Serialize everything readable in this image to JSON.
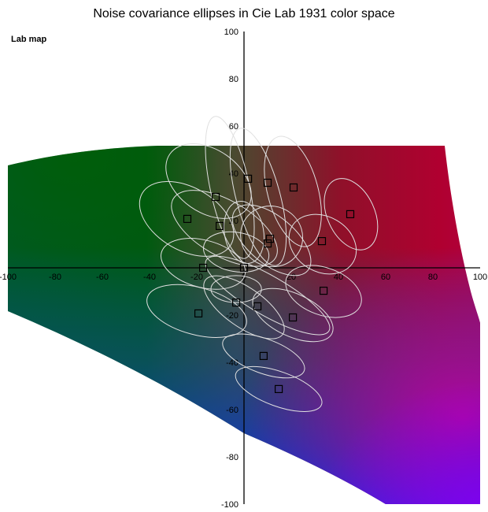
{
  "chart_data": {
    "type": "scatter",
    "title": "Noise covariance ellipses in Cie Lab 1931 color space",
    "subtitle": "Lab map",
    "xlabel": "",
    "ylabel": "",
    "xlim": [
      -100,
      100
    ],
    "ylim": [
      -100,
      100
    ],
    "xticks": [
      -100,
      -80,
      -60,
      -40,
      -20,
      0,
      20,
      40,
      60,
      80,
      100
    ],
    "yticks": [
      100,
      80,
      60,
      40,
      20,
      0,
      -20,
      -40,
      -60,
      -80,
      -100
    ],
    "grid": false,
    "background": "Lab color map (a,b plane)",
    "colors": {
      "marker": "#000000",
      "ellipse": "#e0e0e0",
      "axis": "#000000"
    },
    "points": [
      [
        1.7,
        37.7
      ],
      [
        10,
        36
      ],
      [
        21,
        34
      ],
      [
        -12,
        30
      ],
      [
        -24,
        20.7
      ],
      [
        -10.3,
        17.7
      ],
      [
        45,
        22.7
      ],
      [
        11,
        12.3
      ],
      [
        10,
        10.3
      ],
      [
        33,
        11.3
      ],
      [
        -17.3,
        0
      ],
      [
        0,
        0
      ],
      [
        33.7,
        -9.7
      ],
      [
        -3.3,
        -14.7
      ],
      [
        5.7,
        -16.3
      ],
      [
        -19.3,
        -19.3
      ],
      [
        20.7,
        -21
      ],
      [
        8.3,
        -37.3
      ],
      [
        14.7,
        -51.3
      ]
    ],
    "ellipses": [
      {
        "cx": -6,
        "cy": 34,
        "rx": 8.3,
        "ry": 30.7,
        "angle_deg": 12
      },
      {
        "cx": 6,
        "cy": 30,
        "rx": 9.3,
        "ry": 30,
        "angle_deg": 15
      },
      {
        "cx": 20.7,
        "cy": 32.3,
        "rx": 10.7,
        "ry": 24,
        "angle_deg": 15
      },
      {
        "cx": 45.3,
        "cy": 22.7,
        "rx": 10,
        "ry": 16,
        "angle_deg": 25
      },
      {
        "cx": -15,
        "cy": 36.7,
        "rx": 20,
        "ry": 13.3,
        "angle_deg": -35
      },
      {
        "cx": -24.3,
        "cy": 20.7,
        "rx": 21.7,
        "ry": 13.3,
        "angle_deg": -30
      },
      {
        "cx": -8.3,
        "cy": 16.7,
        "rx": 25,
        "ry": 11.7,
        "angle_deg": -30
      },
      {
        "cx": 0,
        "cy": 15,
        "rx": 8.3,
        "ry": 13.3,
        "angle_deg": 10
      },
      {
        "cx": 11.7,
        "cy": 13.3,
        "rx": 13.3,
        "ry": 12.7,
        "angle_deg": -30
      },
      {
        "cx": 33.3,
        "cy": 10,
        "rx": 15,
        "ry": 11.7,
        "angle_deg": -30
      },
      {
        "cx": -17.3,
        "cy": 1.7,
        "rx": 18.3,
        "ry": 10,
        "angle_deg": -15
      },
      {
        "cx": -3.3,
        "cy": 6.7,
        "rx": 14,
        "ry": 8.3,
        "angle_deg": -10
      },
      {
        "cx": 11.7,
        "cy": 11.7,
        "rx": 20,
        "ry": 10,
        "angle_deg": -40
      },
      {
        "cx": 33.7,
        "cy": -10,
        "rx": 16.7,
        "ry": 10,
        "angle_deg": -20
      },
      {
        "cx": -3.3,
        "cy": -9,
        "rx": 10.7,
        "ry": 5.7,
        "angle_deg": 0
      },
      {
        "cx": -20,
        "cy": -18.3,
        "rx": 21.7,
        "ry": 10,
        "angle_deg": -15
      },
      {
        "cx": 0,
        "cy": -16.7,
        "rx": 20,
        "ry": 8.3,
        "angle_deg": -35
      },
      {
        "cx": 20.7,
        "cy": -20,
        "rx": 18.3,
        "ry": 9,
        "angle_deg": -25
      },
      {
        "cx": 10,
        "cy": -11.7,
        "rx": 30,
        "ry": 8.3,
        "angle_deg": -30
      },
      {
        "cx": 8.3,
        "cy": -37.3,
        "rx": 18.3,
        "ry": 7.3,
        "angle_deg": -20
      },
      {
        "cx": 14.7,
        "cy": -51.3,
        "rx": 19.3,
        "ry": 7.3,
        "angle_deg": -20
      }
    ]
  }
}
